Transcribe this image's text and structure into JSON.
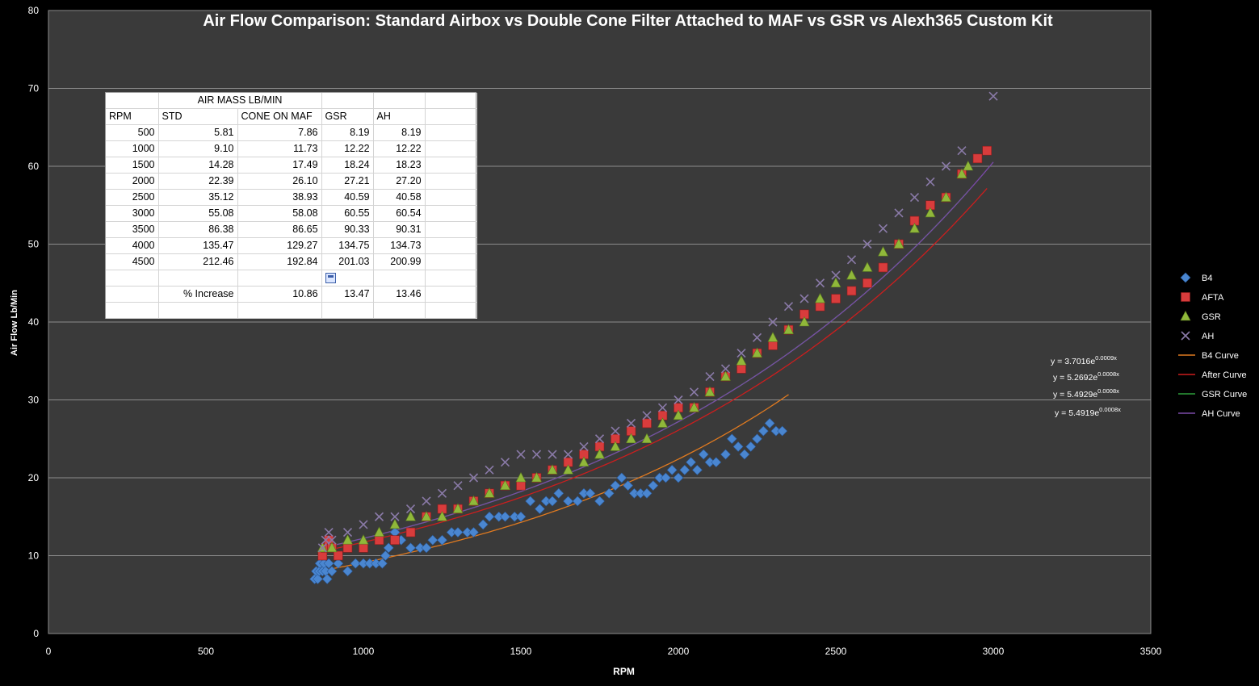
{
  "chart_data": {
    "type": "scatter",
    "title": "Air Flow Comparison: Standard Airbox vs Double Cone Filter Attached to MAF vs GSR vs Alexh365 Custom Kit",
    "xlabel": "RPM",
    "ylabel": "Air Flow  Lb/Min",
    "xlim": [
      0,
      3500
    ],
    "ylim": [
      0,
      80
    ],
    "xticks": [
      0,
      500,
      1000,
      1500,
      2000,
      2500,
      3000,
      3500
    ],
    "yticks": [
      0,
      10,
      20,
      30,
      40,
      50,
      60,
      70,
      80
    ],
    "grid": "horizontal",
    "legend_position": "right",
    "colors": {
      "background": "#000000",
      "plot_area": "#3a3a3a",
      "gridline": "#8c8c8c",
      "B4": "#4a86d0",
      "AFTA": "#d83c3c",
      "GSR": "#90b83a",
      "AH": "#8a7aa8",
      "B4 Curve": "#e07a20",
      "After Curve": "#cc1e1e",
      "GSR Curve": "#2e9e3a",
      "AH Curve": "#7a4aa8"
    },
    "series": [
      {
        "name": "B4",
        "marker": "diamond",
        "points": [
          [
            845,
            7
          ],
          [
            850,
            8
          ],
          [
            855,
            7
          ],
          [
            860,
            8
          ],
          [
            862,
            9
          ],
          [
            870,
            8
          ],
          [
            875,
            9
          ],
          [
            880,
            8
          ],
          [
            885,
            7
          ],
          [
            890,
            9
          ],
          [
            900,
            8
          ],
          [
            920,
            9
          ],
          [
            950,
            8
          ],
          [
            975,
            9
          ],
          [
            1000,
            9
          ],
          [
            1020,
            9
          ],
          [
            1040,
            9
          ],
          [
            1060,
            9
          ],
          [
            1070,
            10
          ],
          [
            1080,
            11
          ],
          [
            1100,
            13
          ],
          [
            1120,
            12
          ],
          [
            1150,
            11
          ],
          [
            1180,
            11
          ],
          [
            1200,
            11
          ],
          [
            1220,
            12
          ],
          [
            1250,
            12
          ],
          [
            1280,
            13
          ],
          [
            1300,
            13
          ],
          [
            1330,
            13
          ],
          [
            1350,
            13
          ],
          [
            1380,
            14
          ],
          [
            1400,
            15
          ],
          [
            1430,
            15
          ],
          [
            1450,
            15
          ],
          [
            1480,
            15
          ],
          [
            1500,
            15
          ],
          [
            1530,
            17
          ],
          [
            1560,
            16
          ],
          [
            1580,
            17
          ],
          [
            1600,
            17
          ],
          [
            1620,
            18
          ],
          [
            1650,
            17
          ],
          [
            1680,
            17
          ],
          [
            1700,
            18
          ],
          [
            1720,
            18
          ],
          [
            1750,
            17
          ],
          [
            1780,
            18
          ],
          [
            1800,
            19
          ],
          [
            1820,
            20
          ],
          [
            1840,
            19
          ],
          [
            1860,
            18
          ],
          [
            1880,
            18
          ],
          [
            1900,
            18
          ],
          [
            1920,
            19
          ],
          [
            1940,
            20
          ],
          [
            1960,
            20
          ],
          [
            1980,
            21
          ],
          [
            2000,
            20
          ],
          [
            2020,
            21
          ],
          [
            2040,
            22
          ],
          [
            2060,
            21
          ],
          [
            2080,
            23
          ],
          [
            2100,
            22
          ],
          [
            2120,
            22
          ],
          [
            2150,
            23
          ],
          [
            2170,
            25
          ],
          [
            2190,
            24
          ],
          [
            2210,
            23
          ],
          [
            2230,
            24
          ],
          [
            2250,
            25
          ],
          [
            2270,
            26
          ],
          [
            2290,
            27
          ],
          [
            2310,
            26
          ],
          [
            2330,
            26
          ]
        ]
      },
      {
        "name": "AFTA",
        "marker": "square",
        "points": [
          [
            870,
            10
          ],
          [
            880,
            11
          ],
          [
            890,
            12
          ],
          [
            900,
            11
          ],
          [
            920,
            10
          ],
          [
            950,
            11
          ],
          [
            1000,
            11
          ],
          [
            1050,
            12
          ],
          [
            1100,
            12
          ],
          [
            1150,
            13
          ],
          [
            1200,
            15
          ],
          [
            1250,
            16
          ],
          [
            1300,
            16
          ],
          [
            1350,
            17
          ],
          [
            1400,
            18
          ],
          [
            1450,
            19
          ],
          [
            1500,
            19
          ],
          [
            1550,
            20
          ],
          [
            1600,
            21
          ],
          [
            1650,
            22
          ],
          [
            1700,
            23
          ],
          [
            1750,
            24
          ],
          [
            1800,
            25
          ],
          [
            1850,
            26
          ],
          [
            1900,
            27
          ],
          [
            1950,
            28
          ],
          [
            2000,
            29
          ],
          [
            2050,
            29
          ],
          [
            2100,
            31
          ],
          [
            2150,
            33
          ],
          [
            2200,
            34
          ],
          [
            2250,
            36
          ],
          [
            2300,
            37
          ],
          [
            2350,
            39
          ],
          [
            2400,
            41
          ],
          [
            2450,
            42
          ],
          [
            2500,
            43
          ],
          [
            2550,
            44
          ],
          [
            2600,
            45
          ],
          [
            2650,
            47
          ],
          [
            2700,
            50
          ],
          [
            2750,
            53
          ],
          [
            2800,
            55
          ],
          [
            2850,
            56
          ],
          [
            2900,
            59
          ],
          [
            2950,
            61
          ],
          [
            2980,
            62
          ]
        ]
      },
      {
        "name": "GSR",
        "marker": "triangle",
        "points": [
          [
            870,
            11
          ],
          [
            900,
            11
          ],
          [
            950,
            12
          ],
          [
            1000,
            12
          ],
          [
            1050,
            13
          ],
          [
            1100,
            14
          ],
          [
            1150,
            15
          ],
          [
            1200,
            15
          ],
          [
            1250,
            15
          ],
          [
            1300,
            16
          ],
          [
            1350,
            17
          ],
          [
            1400,
            18
          ],
          [
            1450,
            19
          ],
          [
            1500,
            20
          ],
          [
            1550,
            20
          ],
          [
            1600,
            21
          ],
          [
            1650,
            21
          ],
          [
            1700,
            22
          ],
          [
            1750,
            23
          ],
          [
            1800,
            24
          ],
          [
            1850,
            25
          ],
          [
            1900,
            25
          ],
          [
            1950,
            27
          ],
          [
            2000,
            28
          ],
          [
            2050,
            29
          ],
          [
            2100,
            31
          ],
          [
            2150,
            33
          ],
          [
            2200,
            35
          ],
          [
            2250,
            36
          ],
          [
            2300,
            38
          ],
          [
            2350,
            39
          ],
          [
            2400,
            40
          ],
          [
            2450,
            43
          ],
          [
            2500,
            45
          ],
          [
            2550,
            46
          ],
          [
            2600,
            47
          ],
          [
            2650,
            49
          ],
          [
            2700,
            50
          ],
          [
            2750,
            52
          ],
          [
            2800,
            54
          ],
          [
            2850,
            56
          ],
          [
            2900,
            59
          ],
          [
            2920,
            60
          ]
        ]
      },
      {
        "name": "AH",
        "marker": "x",
        "points": [
          [
            870,
            11
          ],
          [
            880,
            12
          ],
          [
            890,
            13
          ],
          [
            900,
            12
          ],
          [
            950,
            13
          ],
          [
            1000,
            14
          ],
          [
            1050,
            15
          ],
          [
            1100,
            15
          ],
          [
            1150,
            16
          ],
          [
            1200,
            17
          ],
          [
            1250,
            18
          ],
          [
            1300,
            19
          ],
          [
            1350,
            20
          ],
          [
            1400,
            21
          ],
          [
            1450,
            22
          ],
          [
            1500,
            23
          ],
          [
            1550,
            23
          ],
          [
            1600,
            23
          ],
          [
            1650,
            23
          ],
          [
            1700,
            24
          ],
          [
            1750,
            25
          ],
          [
            1800,
            26
          ],
          [
            1850,
            27
          ],
          [
            1900,
            28
          ],
          [
            1950,
            29
          ],
          [
            2000,
            30
          ],
          [
            2050,
            31
          ],
          [
            2100,
            33
          ],
          [
            2150,
            34
          ],
          [
            2200,
            36
          ],
          [
            2250,
            38
          ],
          [
            2300,
            40
          ],
          [
            2350,
            42
          ],
          [
            2400,
            43
          ],
          [
            2450,
            45
          ],
          [
            2500,
            46
          ],
          [
            2550,
            48
          ],
          [
            2600,
            50
          ],
          [
            2650,
            52
          ],
          [
            2700,
            54
          ],
          [
            2750,
            56
          ],
          [
            2800,
            58
          ],
          [
            2850,
            60
          ],
          [
            2900,
            62
          ],
          [
            3000,
            69
          ]
        ]
      }
    ],
    "trendlines": [
      {
        "name": "B4 Curve",
        "a": 3.7016,
        "b": 0.0009,
        "x_range": [
          850,
          2350
        ],
        "equation_base": "y = 3.7016e",
        "equation_exp": "0.0009x"
      },
      {
        "name": "After Curve",
        "a": 5.2692,
        "b": 0.0008,
        "x_range": [
          870,
          2980
        ],
        "equation_base": "y = 5.2692e",
        "equation_exp": "0.0008x"
      },
      {
        "name": "GSR Curve",
        "a": 5.4929,
        "b": 0.0008,
        "x_range": [
          870,
          2920
        ],
        "equation_base": "y = 5.4929e",
        "equation_exp": "0.0008x"
      },
      {
        "name": "AH Curve",
        "a": 5.4919,
        "b": 0.0008,
        "x_range": [
          870,
          3000
        ],
        "equation_base": "y = 5.4919e",
        "equation_exp": "0.0008x"
      }
    ]
  },
  "table": {
    "title": "AIR MASS LB/MIN",
    "headers": [
      "RPM",
      "STD",
      "CONE ON MAF",
      "GSR",
      "AH"
    ],
    "rows": [
      [
        "500",
        "5.81",
        "7.86",
        "8.19",
        "8.19"
      ],
      [
        "1000",
        "9.10",
        "11.73",
        "12.22",
        "12.22"
      ],
      [
        "1500",
        "14.28",
        "17.49",
        "18.24",
        "18.23"
      ],
      [
        "2000",
        "22.39",
        "26.10",
        "27.21",
        "27.20"
      ],
      [
        "2500",
        "35.12",
        "38.93",
        "40.59",
        "40.58"
      ],
      [
        "3000",
        "55.08",
        "58.08",
        "60.55",
        "60.54"
      ],
      [
        "3500",
        "86.38",
        "86.65",
        "90.33",
        "90.31"
      ],
      [
        "4000",
        "135.47",
        "129.27",
        "134.75",
        "134.73"
      ],
      [
        "4500",
        "212.46",
        "192.84",
        "201.03",
        "200.99"
      ]
    ],
    "increase_label": "% Increase",
    "increase_values": [
      "10.86",
      "13.47",
      "13.46"
    ]
  }
}
